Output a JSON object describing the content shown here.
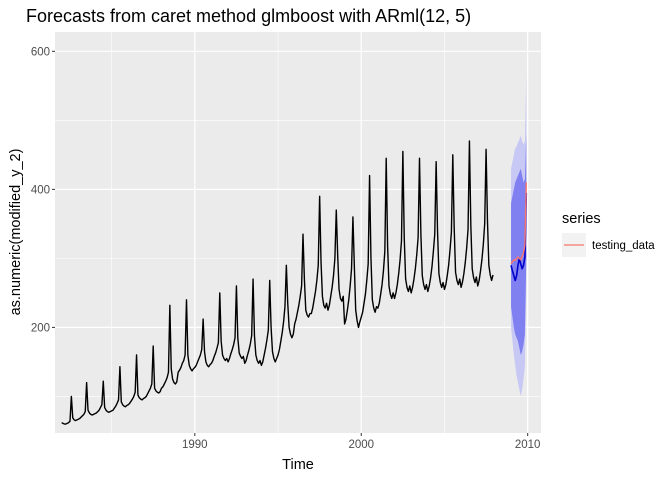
{
  "chart_data": {
    "type": "line",
    "title": "Forecasts from caret method glmboost with ARml(12,  5)",
    "xlabel": "Time",
    "ylabel": "as.numeric(modified_y_2)",
    "xlim": [
      1981.6,
      2010.8
    ],
    "ylim": [
      47,
      628
    ],
    "x_ticks": [
      1990,
      2000,
      2010
    ],
    "x_tick_labels": [
      "1990",
      "2000",
      "2010"
    ],
    "y_ticks": [
      200,
      400,
      600
    ],
    "y_tick_labels": [
      "200",
      "400",
      "600"
    ],
    "grid": true,
    "legend": {
      "title": "series",
      "placement": "right",
      "entries": [
        {
          "label": "testing_data",
          "color": "#F8766D"
        }
      ]
    },
    "colors": {
      "history": "#000000",
      "forecast": "#0000CC",
      "band80": "#8080F0",
      "band95": "#C8C8F5",
      "testing_data": "#F8766D",
      "panel": "#EBEBEB",
      "grid": "#FFFFFF"
    },
    "series": [
      {
        "role": "history",
        "start": 1982,
        "frequency": 12,
        "values": [
          62,
          61,
          60,
          60,
          61,
          62,
          64,
          100,
          69,
          66,
          65,
          66,
          67,
          68,
          70,
          72,
          74,
          78,
          120,
          80,
          76,
          74,
          73,
          74,
          75,
          76,
          78,
          80,
          84,
          88,
          122,
          84,
          80,
          78,
          77,
          78,
          79,
          80,
          83,
          86,
          90,
          95,
          143,
          92,
          88,
          86,
          85,
          87,
          88,
          90,
          93,
          96,
          100,
          106,
          160,
          102,
          98,
          96,
          95,
          97,
          98,
          100,
          104,
          108,
          112,
          118,
          173,
          112,
          108,
          106,
          105,
          107,
          112,
          114,
          118,
          122,
          127,
          135,
          232,
          140,
          125,
          120,
          118,
          121,
          135,
          138,
          142,
          148,
          152,
          160,
          240,
          160,
          145,
          140,
          137,
          140,
          142,
          145,
          150,
          155,
          160,
          168,
          212,
          165,
          150,
          145,
          143,
          146,
          148,
          152,
          158,
          163,
          170,
          178,
          250,
          180,
          160,
          155,
          152,
          155,
          150,
          155,
          162,
          168,
          175,
          185,
          260,
          185,
          163,
          158,
          155,
          158,
          148,
          152,
          160,
          167,
          176,
          188,
          270,
          188,
          160,
          152,
          148,
          152,
          145,
          150,
          160,
          170,
          182,
          196,
          268,
          200,
          165,
          155,
          150,
          155,
          160,
          168,
          180,
          192,
          208,
          230,
          290,
          235,
          200,
          190,
          185,
          190,
          205,
          212,
          222,
          232,
          245,
          260,
          335,
          270,
          225,
          218,
          215,
          220,
          220,
          228,
          240,
          252,
          268,
          290,
          390,
          295,
          245,
          232,
          228,
          235,
          225,
          232,
          245,
          258,
          275,
          300,
          370,
          305,
          255,
          242,
          238,
          245,
          205,
          212,
          225,
          240,
          260,
          285,
          360,
          290,
          225,
          210,
          200,
          208,
          215,
          222,
          235,
          248,
          268,
          292,
          420,
          300,
          240,
          228,
          222,
          230,
          228,
          235,
          248,
          262,
          282,
          310,
          445,
          318,
          260,
          248,
          242,
          250,
          242,
          250,
          262,
          278,
          298,
          325,
          455,
          330,
          270,
          258,
          252,
          260,
          250,
          258,
          270,
          285,
          305,
          330,
          445,
          335,
          275,
          262,
          255,
          262,
          252,
          260,
          272,
          288,
          310,
          335,
          440,
          340,
          278,
          265,
          258,
          265,
          255,
          262,
          275,
          290,
          312,
          338,
          450,
          345,
          280,
          268,
          262,
          270,
          258,
          266,
          278,
          294,
          315,
          342,
          470,
          348,
          285,
          272,
          265,
          273,
          260,
          268,
          282,
          298,
          320,
          350,
          458,
          355,
          290,
          276,
          268,
          276
        ]
      },
      {
        "role": "forecast",
        "start": 2009.0,
        "frequency": 12,
        "values": [
          290,
          282,
          275,
          268,
          275,
          290,
          300,
          292,
          285,
          290,
          302,
          395
        ],
        "lo80": [
          230,
          215,
          200,
          190,
          185,
          180,
          170,
          160,
          165,
          175,
          190,
          300
        ],
        "hi80": [
          380,
          390,
          400,
          410,
          415,
          420,
          425,
          430,
          420,
          410,
          415,
          480
        ],
        "lo95": [
          200,
          180,
          160,
          145,
          130,
          120,
          110,
          100,
          110,
          125,
          145,
          260
        ],
        "hi95": [
          430,
          440,
          450,
          460,
          462,
          468,
          472,
          478,
          470,
          465,
          470,
          565
        ]
      },
      {
        "name": "testing_data",
        "start": 2009.0,
        "frequency": 12,
        "values": [
          292,
          295,
          298,
          297,
          300,
          302,
          300,
          298,
          303,
          308,
          320,
          410
        ]
      }
    ]
  }
}
